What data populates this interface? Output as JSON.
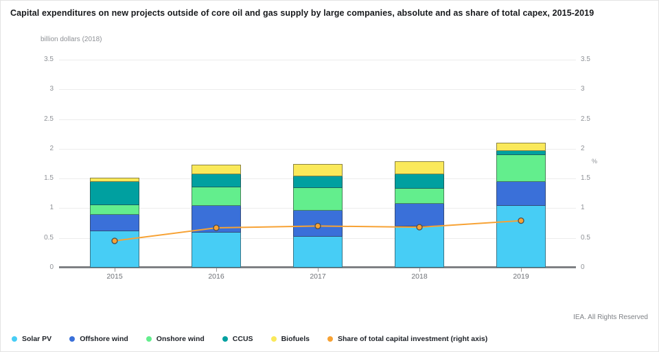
{
  "header": {
    "title": "Capital expenditures on new projects outside of core oil and gas supply by large companies, absolute and as share of total capex, 2015-2019"
  },
  "footer": {
    "credit": "IEA. All Rights Reserved"
  },
  "chart_data": {
    "type": "bar",
    "subtype": "stacked-bar-with-line",
    "title": "Capital expenditures on new projects outside of core oil and gas supply by large companies, absolute and as share of total capex, 2015-2019",
    "left_axis_title": "billion dollars (2018)",
    "right_axis_title": "%",
    "categories": [
      "2015",
      "2016",
      "2017",
      "2018",
      "2019"
    ],
    "series": [
      {
        "name": "Solar PV",
        "type": "bar",
        "axis": "left",
        "color": "#47cdf5",
        "values": [
          0.62,
          0.6,
          0.53,
          0.7,
          1.05
        ]
      },
      {
        "name": "Offshore wind",
        "type": "bar",
        "axis": "left",
        "color": "#3a70d9",
        "values": [
          0.28,
          0.45,
          0.44,
          0.39,
          0.41
        ]
      },
      {
        "name": "Onshore wind",
        "type": "bar",
        "axis": "left",
        "color": "#63ee8d",
        "values": [
          0.16,
          0.31,
          0.38,
          0.25,
          0.45
        ]
      },
      {
        "name": "CCUS",
        "type": "bar",
        "axis": "left",
        "color": "#00a0a0",
        "values": [
          0.4,
          0.22,
          0.2,
          0.24,
          0.07
        ]
      },
      {
        "name": "Biofuels",
        "type": "bar",
        "axis": "left",
        "color": "#fae95a",
        "values": [
          0.05,
          0.15,
          0.2,
          0.21,
          0.12
        ]
      },
      {
        "name": "Share of total capital investment (right axis)",
        "type": "line",
        "axis": "right",
        "color": "#f7a234",
        "marker_stroke": "#4d4d4d",
        "values": [
          0.45,
          0.67,
          0.7,
          0.68,
          0.79
        ]
      }
    ],
    "y_left": {
      "min": 0,
      "max": 3.5,
      "step": 0.5,
      "ticks": [
        "0",
        "0.5",
        "1",
        "1.5",
        "2",
        "2.5",
        "3",
        "3.5"
      ]
    },
    "y_right": {
      "min": 0,
      "max": 3.5,
      "step": 0.5,
      "ticks": [
        "0",
        "0.5",
        "1",
        "1.5",
        "2",
        "2.5",
        "3",
        "3.5"
      ]
    },
    "grid": true,
    "legend_position": "bottom",
    "colors": {
      "gridline": "#ececec",
      "axis_line": "#7e8083",
      "tick_text": "#8e9196",
      "bar_border": "rgba(45,45,45,0.55)"
    }
  }
}
